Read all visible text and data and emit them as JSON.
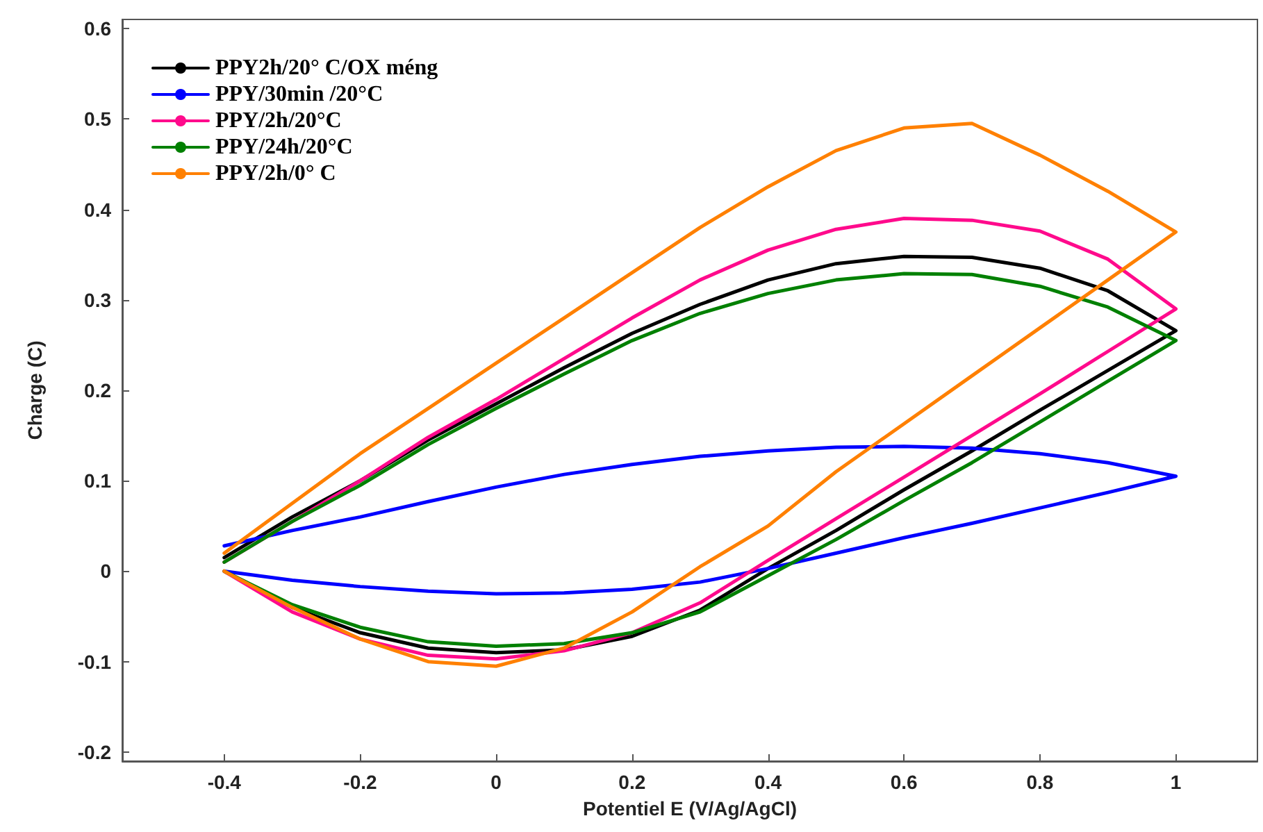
{
  "chart_data": {
    "type": "line",
    "xlabel": "Potentiel E (V/Ag/AgCl)",
    "ylabel": "Charge (C)",
    "xlim": [
      -0.55,
      1.12
    ],
    "ylim": [
      -0.21,
      0.61
    ],
    "xticks": [
      -0.4,
      -0.2,
      0,
      0.2,
      0.4,
      0.6,
      0.8,
      1
    ],
    "yticks": [
      -0.2,
      -0.1,
      0,
      0.1,
      0.2,
      0.3,
      0.4,
      0.5,
      0.6
    ],
    "grid": false,
    "legend": "top left",
    "marker": "none",
    "line_style": "solid",
    "series": [
      {
        "name": "PPY2h/20° C/OX méng",
        "color": "#000000",
        "x": [
          -0.4,
          -0.3,
          -0.2,
          -0.1,
          0,
          0.1,
          0.2,
          0.3,
          0.4,
          0.5,
          0.6,
          0.7,
          0.8,
          0.9,
          1,
          0.9,
          0.8,
          0.7,
          0.6,
          0.5,
          0.4,
          0.3,
          0.2,
          0.1,
          0,
          -0.1,
          -0.2,
          -0.3,
          -0.4
        ],
        "values": [
          0.015,
          0.06,
          0.1,
          0.145,
          0.185,
          0.225,
          0.263,
          0.295,
          0.322,
          0.34,
          0.348,
          0.347,
          0.335,
          0.31,
          0.266,
          0.222,
          0.178,
          0.133,
          0.09,
          0.045,
          0.003,
          -0.043,
          -0.072,
          -0.087,
          -0.09,
          -0.085,
          -0.068,
          -0.04,
          0
        ]
      },
      {
        "name": "PPY/30min /20°C",
        "color": "#0000ff",
        "x": [
          -0.4,
          -0.3,
          -0.2,
          -0.1,
          0,
          0.1,
          0.2,
          0.3,
          0.4,
          0.5,
          0.6,
          0.7,
          0.8,
          0.9,
          1,
          0.9,
          0.8,
          0.7,
          0.6,
          0.5,
          0.4,
          0.3,
          0.2,
          0.1,
          0,
          -0.1,
          -0.2,
          -0.3,
          -0.4
        ],
        "values": [
          0.028,
          0.045,
          0.06,
          0.077,
          0.093,
          0.107,
          0.118,
          0.127,
          0.133,
          0.137,
          0.138,
          0.136,
          0.13,
          0.12,
          0.105,
          0.087,
          0.07,
          0.053,
          0.037,
          0.02,
          0.003,
          -0.012,
          -0.02,
          -0.024,
          -0.025,
          -0.022,
          -0.017,
          -0.01,
          0
        ]
      },
      {
        "name": "PPY/2h/20°C",
        "color": "#ff0a8c",
        "x": [
          -0.4,
          -0.3,
          -0.2,
          -0.1,
          0,
          0.1,
          0.2,
          0.3,
          0.4,
          0.5,
          0.6,
          0.7,
          0.8,
          0.9,
          1,
          0.9,
          0.8,
          0.7,
          0.6,
          0.5,
          0.4,
          0.3,
          0.2,
          0.1,
          0,
          -0.1,
          -0.2,
          -0.3,
          -0.4
        ],
        "values": [
          0.01,
          0.055,
          0.1,
          0.148,
          0.19,
          0.235,
          0.28,
          0.322,
          0.355,
          0.378,
          0.39,
          0.388,
          0.376,
          0.345,
          0.29,
          0.243,
          0.196,
          0.15,
          0.104,
          0.058,
          0.012,
          -0.035,
          -0.068,
          -0.088,
          -0.097,
          -0.093,
          -0.075,
          -0.045,
          0
        ]
      },
      {
        "name": "PPY/24h/20°C",
        "color": "#008000",
        "x": [
          -0.4,
          -0.3,
          -0.2,
          -0.1,
          0,
          0.1,
          0.2,
          0.3,
          0.4,
          0.5,
          0.6,
          0.7,
          0.8,
          0.9,
          1,
          0.9,
          0.8,
          0.7,
          0.6,
          0.5,
          0.4,
          0.3,
          0.2,
          0.1,
          0,
          -0.1,
          -0.2,
          -0.3,
          -0.4
        ],
        "values": [
          0.01,
          0.055,
          0.095,
          0.14,
          0.18,
          0.218,
          0.255,
          0.285,
          0.307,
          0.322,
          0.329,
          0.328,
          0.315,
          0.292,
          0.255,
          0.21,
          0.165,
          0.12,
          0.078,
          0.035,
          -0.005,
          -0.045,
          -0.068,
          -0.08,
          -0.083,
          -0.078,
          -0.062,
          -0.037,
          0
        ]
      },
      {
        "name": "PPY/2h/0° C",
        "color": "#ff8000",
        "x": [
          -0.4,
          -0.3,
          -0.2,
          -0.1,
          0,
          0.1,
          0.2,
          0.3,
          0.4,
          0.5,
          0.6,
          0.7,
          0.8,
          0.9,
          1,
          0.9,
          0.8,
          0.7,
          0.6,
          0.5,
          0.4,
          0.3,
          0.2,
          0.1,
          0,
          -0.1,
          -0.2,
          -0.3,
          -0.4
        ],
        "values": [
          0.02,
          0.075,
          0.13,
          0.18,
          0.23,
          0.28,
          0.33,
          0.38,
          0.425,
          0.465,
          0.49,
          0.495,
          0.46,
          0.42,
          0.375,
          0.322,
          0.269,
          0.216,
          0.163,
          0.11,
          0.05,
          0.005,
          -0.045,
          -0.085,
          -0.105,
          -0.1,
          -0.075,
          -0.04,
          0
        ]
      }
    ]
  }
}
